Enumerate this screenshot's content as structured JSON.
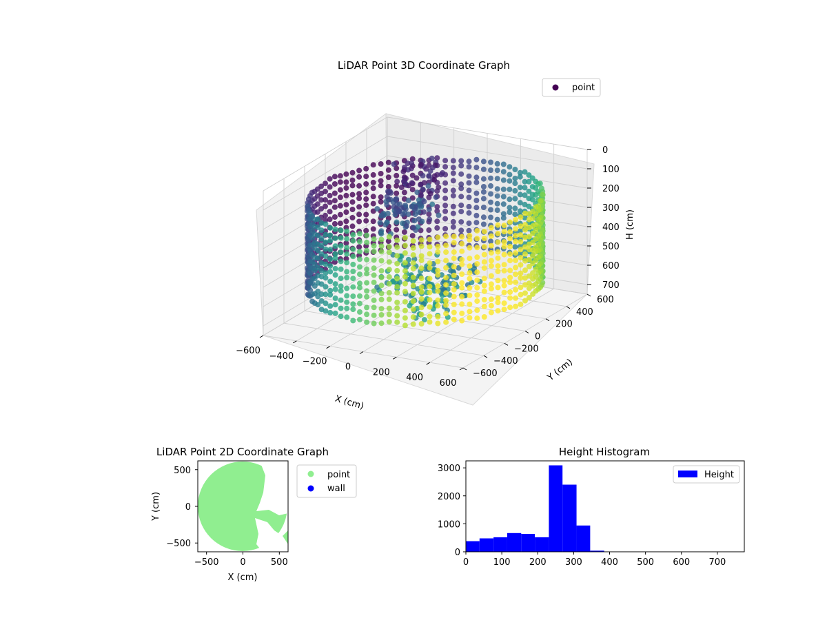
{
  "colors": {
    "viridis_dark": "#440154",
    "viridis_mid": "#21918c",
    "viridis_light": "#fde725",
    "point_2d": "#90ee90",
    "wall_2d": "#0000ff",
    "histogram_bar": "#0000ff"
  },
  "chart_data": [
    {
      "type": "scatter",
      "projection": "3d",
      "title": "LiDAR Point 3D Coordinate Graph",
      "xlabel": "X (cm)",
      "ylabel": "Y (cm)",
      "zlabel": "H (cm)",
      "xticks": [
        "−600",
        "−400",
        "−200",
        "0",
        "200",
        "400",
        "600"
      ],
      "yticks": [
        "−600",
        "−400",
        "−200",
        "0",
        "200",
        "400",
        "600"
      ],
      "zticks": [
        "0",
        "100",
        "200",
        "300",
        "400",
        "500",
        "600",
        "700"
      ],
      "xlim": [
        -600,
        600
      ],
      "ylim": [
        -600,
        600
      ],
      "zlim": [
        0,
        750
      ],
      "z_axis_inverted": true,
      "colormap": "viridis",
      "grid": true,
      "legend": {
        "entries": [
          "point"
        ],
        "placement": "top-right"
      },
      "shape_summary": "cylindrical wall of points at radius ≈600 cm with heights ≈150–600 cm, plus interior clusters",
      "series": [
        {
          "name": "point",
          "ring": {
            "radius": 600,
            "h_min": 150,
            "h_max": 600
          },
          "clusters": [
            {
              "x": -80,
              "y": 40,
              "h": 50
            },
            {
              "x": -100,
              "y": 0,
              "h": 200
            },
            {
              "x": -200,
              "y": 100,
              "h": 300
            },
            {
              "x": -50,
              "y": -100,
              "h": 500
            },
            {
              "x": 200,
              "y": -300,
              "h": 550
            },
            {
              "x": 300,
              "y": -200,
              "h": 450
            }
          ]
        }
      ]
    },
    {
      "type": "scatter",
      "title": "LiDAR Point 2D Coordinate Graph",
      "xlabel": "X (cm)",
      "ylabel": "Y (cm)",
      "xticks": [
        "−500",
        "0",
        "500"
      ],
      "yticks": [
        "500",
        "0",
        "−500"
      ],
      "xlim": [
        -620,
        620
      ],
      "ylim": [
        -620,
        620
      ],
      "legend": {
        "entries": [
          "point",
          "wall"
        ],
        "placement": "outside-right"
      },
      "series": [
        {
          "name": "point",
          "shape": "disc",
          "center": [
            0,
            0
          ],
          "radius": 600,
          "color": "#90ee90"
        },
        {
          "name": "wall",
          "points": [],
          "color": "#0000ff"
        }
      ]
    },
    {
      "type": "bar",
      "subtype": "histogram",
      "title": "Height Histogram",
      "xticks": [
        "0",
        "100",
        "200",
        "300",
        "400",
        "500",
        "600",
        "700"
      ],
      "yticks": [
        "0",
        "1000",
        "2000",
        "3000"
      ],
      "xlim": [
        0,
        775
      ],
      "ylim": [
        0,
        3250
      ],
      "legend": {
        "entries": [
          "Height"
        ],
        "placement": "top-right"
      },
      "bin_edges": [
        0,
        38,
        77,
        115,
        154,
        192,
        231,
        269,
        308,
        346,
        385,
        423,
        462,
        500,
        539,
        577,
        616,
        654,
        693,
        731,
        770
      ],
      "series": [
        {
          "name": "Height",
          "values": [
            380,
            480,
            520,
            670,
            640,
            520,
            3090,
            2400,
            940,
            40,
            8,
            5,
            4,
            3,
            2,
            2,
            1,
            1,
            1,
            1
          ]
        }
      ]
    }
  ]
}
